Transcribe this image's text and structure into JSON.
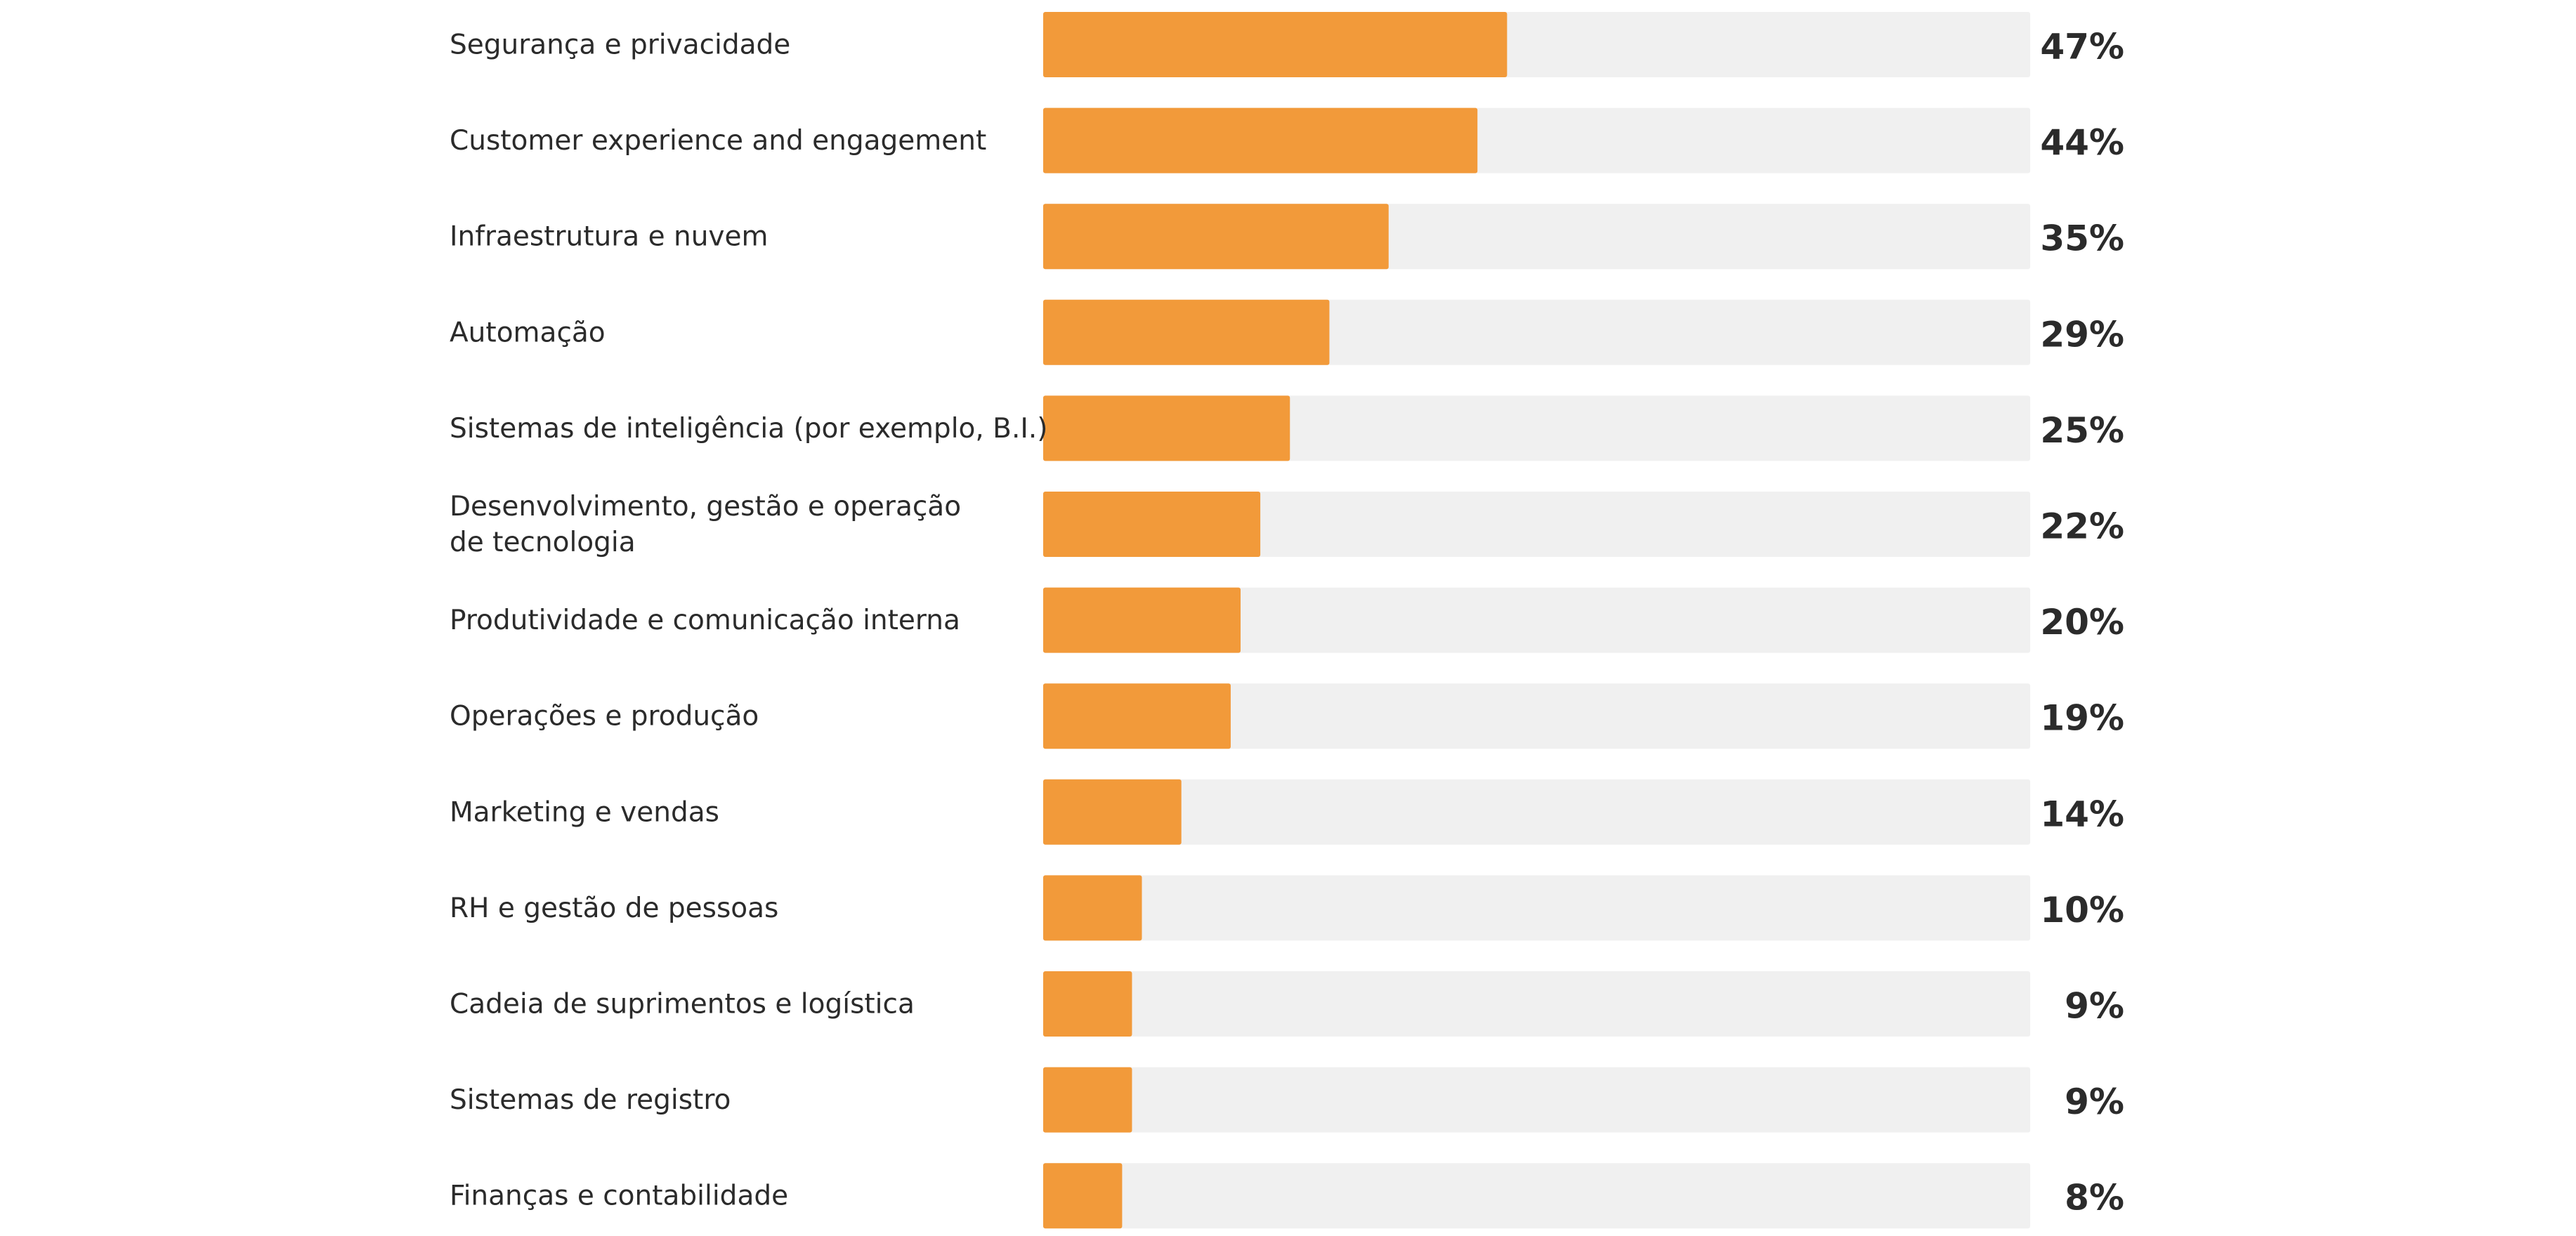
{
  "chart_data": {
    "type": "bar",
    "orientation": "horizontal",
    "categories": [
      "Segurança e privacidade",
      "Customer experience and engagement",
      "Infraestrutura e nuvem",
      "Automação",
      "Sistemas de inteligência (por exemplo, B.I.)",
      "Desenvolvimento, gestão e operação de tecnologia",
      "Produtividade e comunicação interna",
      "Operações e produção",
      "Marketing e vendas",
      "RH e gestão de pessoas",
      "Cadeia de suprimentos e logística",
      "Sistemas de registro",
      "Finanças e contabilidade"
    ],
    "category_lines": [
      [
        "Segurança e privacidade"
      ],
      [
        "Customer experience and engagement"
      ],
      [
        "Infraestrutura e nuvem"
      ],
      [
        "Automação"
      ],
      [
        "Sistemas de inteligência (por exemplo, B.I.)"
      ],
      [
        "Desenvolvimento, gestão e operação",
        "de tecnologia"
      ],
      [
        "Produtividade e comunicação interna"
      ],
      [
        "Operações e produção"
      ],
      [
        "Marketing e vendas"
      ],
      [
        "RH e gestão de pessoas"
      ],
      [
        "Cadeia de suprimentos e logística"
      ],
      [
        "Sistemas de registro"
      ],
      [
        "Finanças e contabilidade"
      ]
    ],
    "values": [
      47,
      44,
      35,
      29,
      25,
      22,
      20,
      19,
      14,
      10,
      9,
      9,
      8
    ],
    "value_labels": [
      "47%",
      "44%",
      "35%",
      "29%",
      "25%",
      "22%",
      "20%",
      "19%",
      "14%",
      "10%",
      "9%",
      "9%",
      "8%"
    ],
    "xlim": [
      0,
      100
    ],
    "colors": {
      "bar": "#F29A3A",
      "track": "#F0F0F0",
      "text": "#2B2B2B"
    },
    "title": "",
    "xlabel": "",
    "ylabel": ""
  }
}
